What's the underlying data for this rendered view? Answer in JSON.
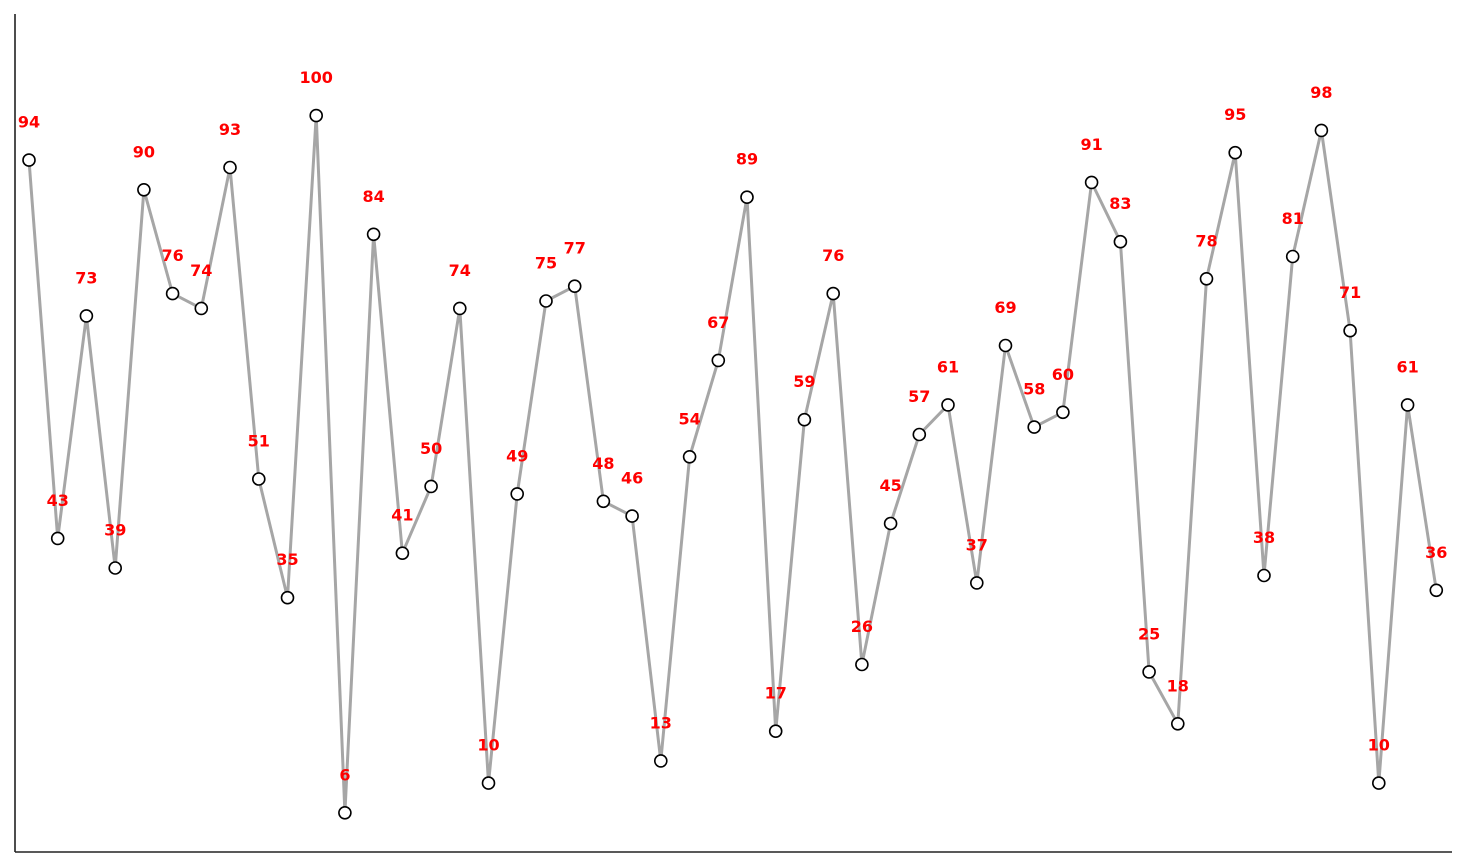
{
  "chart_data": {
    "type": "line",
    "title": "",
    "xlabel": "",
    "ylabel": "",
    "x_ticks_visible": false,
    "y_ticks_visible": false,
    "grid": false,
    "legend": "none",
    "ylim": [
      0,
      106.5
    ],
    "x": [
      0,
      1,
      2,
      3,
      4,
      5,
      6,
      7,
      8,
      9,
      10,
      11,
      12,
      13,
      14,
      15,
      16,
      17,
      18,
      19,
      20,
      21,
      22,
      23,
      24,
      25,
      26,
      27,
      28,
      29,
      30,
      31,
      32,
      33,
      34,
      35,
      36,
      37,
      38,
      39,
      40,
      41,
      42,
      43,
      44,
      45,
      46,
      47,
      48,
      49
    ],
    "series": [
      {
        "values": [
          94,
          43,
          73,
          39,
          90,
          76,
          74,
          93,
          51,
          35,
          100,
          6,
          84,
          41,
          50,
          74,
          10,
          49,
          75,
          77,
          48,
          46,
          13,
          54,
          67,
          89,
          17,
          59,
          76,
          26,
          45,
          57,
          61,
          37,
          69,
          58,
          60,
          91,
          83,
          25,
          18,
          78,
          95,
          38,
          81,
          98,
          71,
          10,
          61,
          36
        ],
        "labels": [
          "94",
          "43",
          "73",
          "39",
          "90",
          "76",
          "74",
          "93",
          "51",
          "35",
          "100",
          "6",
          "84",
          "41",
          "50",
          "74",
          "10",
          "49",
          "75",
          "77",
          "48",
          "46",
          "13",
          "54",
          "67",
          "89",
          "17",
          "59",
          "76",
          "26",
          "45",
          "57",
          "61",
          "37",
          "69",
          "58",
          "60",
          "91",
          "83",
          "25",
          "18",
          "78",
          "95",
          "38",
          "81",
          "98",
          "71",
          "10",
          "61",
          "36"
        ]
      }
    ]
  },
  "style": {
    "line_color": "#a6a6a6",
    "marker_fill": "#ffffff",
    "marker_edge": "#000000",
    "label_color": "#ff0000",
    "axis_color": "#222222"
  }
}
